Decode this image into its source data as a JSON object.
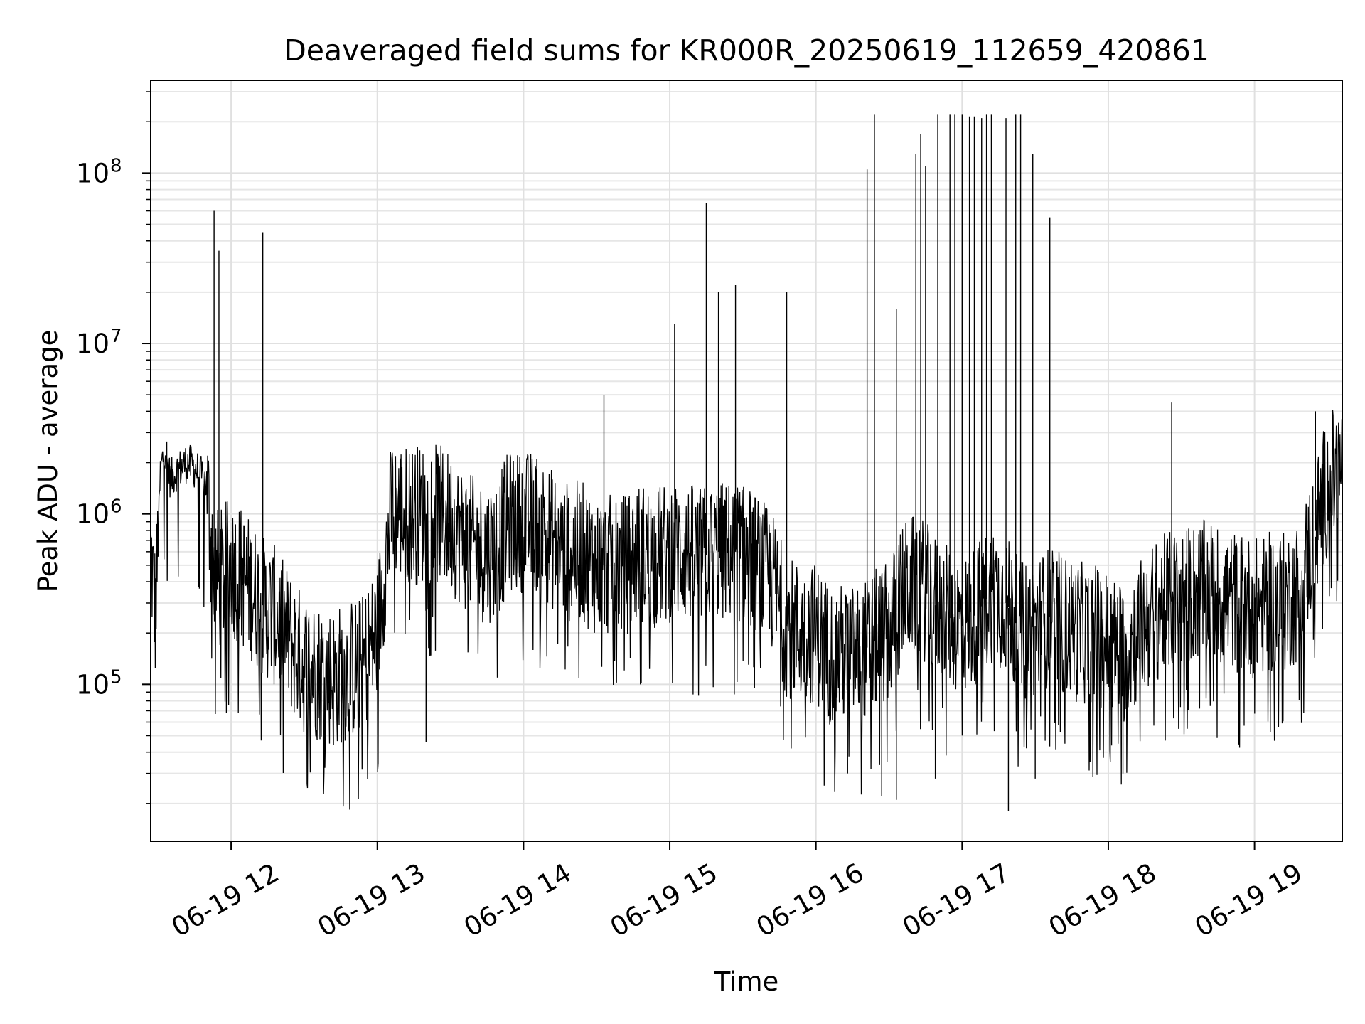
{
  "chart_data": {
    "type": "line",
    "title": "Deaveraged field sums for KR000R_20250619_112659_420861",
    "xlabel": "Time",
    "ylabel": "Peak ADU - average",
    "yscale": "log",
    "grid": true,
    "legend": "none",
    "xlim": [
      "2025-06-19 11:27",
      "2025-06-19 19:36"
    ],
    "ylim": [
      12000,
      350000000
    ],
    "xticks": [
      {
        "time": "2025-06-19 12:00",
        "label": "06-19 12"
      },
      {
        "time": "2025-06-19 13:00",
        "label": "06-19 13"
      },
      {
        "time": "2025-06-19 14:00",
        "label": "06-19 14"
      },
      {
        "time": "2025-06-19 15:00",
        "label": "06-19 15"
      },
      {
        "time": "2025-06-19 16:00",
        "label": "06-19 16"
      },
      {
        "time": "2025-06-19 17:00",
        "label": "06-19 17"
      },
      {
        "time": "2025-06-19 18:00",
        "label": "06-19 18"
      },
      {
        "time": "2025-06-19 19:00",
        "label": "06-19 19"
      }
    ],
    "yticks": [
      {
        "value": 100000,
        "label": "10",
        "exp": "5"
      },
      {
        "value": 1000000,
        "label": "10",
        "exp": "6"
      },
      {
        "value": 10000000,
        "label": "10",
        "exp": "7"
      },
      {
        "value": 100000000,
        "label": "10",
        "exp": "8"
      }
    ],
    "line_color": "#000000",
    "series": [
      {
        "x": [
          "2025-06-19 11:27",
          "2025-06-19 11:29",
          "2025-06-19 11:31",
          "2025-06-19 11:33",
          "2025-06-19 11:35",
          "2025-06-19 11:38",
          "2025-06-19 11:42",
          "2025-06-19 11:46",
          "2025-06-19 11:50",
          "2025-06-19 11:52",
          "2025-06-19 11:53",
          "2025-06-19 11:55",
          "2025-06-19 12:00",
          "2025-06-19 12:06",
          "2025-06-19 12:12",
          "2025-06-19 12:18",
          "2025-06-19 12:24",
          "2025-06-19 12:30",
          "2025-06-19 12:36",
          "2025-06-19 12:42",
          "2025-06-19 12:48",
          "2025-06-19 12:54",
          "2025-06-19 13:00",
          "2025-06-19 13:06",
          "2025-06-19 13:12",
          "2025-06-19 13:18",
          "2025-06-19 13:24",
          "2025-06-19 13:30",
          "2025-06-19 13:36",
          "2025-06-19 13:42",
          "2025-06-19 13:48",
          "2025-06-19 13:54",
          "2025-06-19 14:00",
          "2025-06-19 14:06",
          "2025-06-19 14:12",
          "2025-06-19 14:18",
          "2025-06-19 14:24",
          "2025-06-19 14:30",
          "2025-06-19 14:36",
          "2025-06-19 14:42",
          "2025-06-19 14:48",
          "2025-06-19 14:54",
          "2025-06-19 15:00",
          "2025-06-19 15:06",
          "2025-06-19 15:12",
          "2025-06-19 15:18",
          "2025-06-19 15:24",
          "2025-06-19 15:30",
          "2025-06-19 15:36",
          "2025-06-19 15:42",
          "2025-06-19 15:48",
          "2025-06-19 15:54",
          "2025-06-19 16:00",
          "2025-06-19 16:06",
          "2025-06-19 16:12",
          "2025-06-19 16:18",
          "2025-06-19 16:24",
          "2025-06-19 16:30",
          "2025-06-19 16:36",
          "2025-06-19 16:42",
          "2025-06-19 16:48",
          "2025-06-19 16:54",
          "2025-06-19 17:00",
          "2025-06-19 17:06",
          "2025-06-19 17:12",
          "2025-06-19 17:18",
          "2025-06-19 17:24",
          "2025-06-19 17:30",
          "2025-06-19 17:36",
          "2025-06-19 17:42",
          "2025-06-19 17:48",
          "2025-06-19 17:54",
          "2025-06-19 18:00",
          "2025-06-19 18:06",
          "2025-06-19 18:12",
          "2025-06-19 18:18",
          "2025-06-19 18:24",
          "2025-06-19 18:30",
          "2025-06-19 18:36",
          "2025-06-19 18:42",
          "2025-06-19 18:48",
          "2025-06-19 18:54",
          "2025-06-19 19:00",
          "2025-06-19 19:06",
          "2025-06-19 19:12",
          "2025-06-19 19:18",
          "2025-06-19 19:24",
          "2025-06-19 19:30",
          "2025-06-19 19:36"
        ],
        "y": [
          600000,
          250000,
          1800000,
          2500000,
          1600000,
          1800000,
          2000000,
          1800000,
          1500000,
          600000,
          500000,
          400000,
          500000,
          400000,
          300000,
          250000,
          180000,
          130000,
          120000,
          110000,
          120000,
          130000,
          200000,
          1100000,
          1000000,
          1000000,
          1000000,
          900000,
          700000,
          600000,
          600000,
          900000,
          900000,
          900000,
          700000,
          600000,
          600000,
          500000,
          500000,
          500000,
          600000,
          550000,
          600000,
          600000,
          550000,
          600000,
          600000,
          600000,
          500000,
          400000,
          220000,
          200000,
          200000,
          150000,
          150000,
          150000,
          180000,
          200000,
          350000,
          400000,
          300000,
          250000,
          220000,
          260000,
          350000,
          300000,
          200000,
          220000,
          250000,
          220000,
          200000,
          200000,
          180000,
          150000,
          200000,
          260000,
          300000,
          320000,
          350000,
          350000,
          320000,
          300000,
          280000,
          300000,
          300000,
          350000,
          700000,
          1500000,
          1800000
        ]
      }
    ],
    "spikes": [
      {
        "x": "2025-06-19 11:53",
        "y": 60000000
      },
      {
        "x": "2025-06-19 11:55",
        "y": 35000000
      },
      {
        "x": "2025-06-19 14:33",
        "y": 5000000
      },
      {
        "x": "2025-06-19 15:02",
        "y": 13000000
      },
      {
        "x": "2025-06-19 15:15",
        "y": 67000000
      },
      {
        "x": "2025-06-19 15:20",
        "y": 20000000
      },
      {
        "x": "2025-06-19 15:27",
        "y": 22000000
      },
      {
        "x": "2025-06-19 15:48",
        "y": 20000000
      },
      {
        "x": "2025-06-19 16:21",
        "y": 105000000
      },
      {
        "x": "2025-06-19 16:24",
        "y": 220000000
      },
      {
        "x": "2025-06-19 16:33",
        "y": 16000000
      },
      {
        "x": "2025-06-19 16:41",
        "y": 130000000
      },
      {
        "x": "2025-06-19 16:43",
        "y": 170000000
      },
      {
        "x": "2025-06-19 16:45",
        "y": 110000000
      },
      {
        "x": "2025-06-19 16:50",
        "y": 220000000
      },
      {
        "x": "2025-06-19 16:55",
        "y": 220000000
      },
      {
        "x": "2025-06-19 16:57",
        "y": 220000000
      },
      {
        "x": "2025-06-19 17:00",
        "y": 220000000
      },
      {
        "x": "2025-06-19 17:03",
        "y": 215000000
      },
      {
        "x": "2025-06-19 17:05",
        "y": 215000000
      },
      {
        "x": "2025-06-19 17:08",
        "y": 210000000
      },
      {
        "x": "2025-06-19 17:10",
        "y": 220000000
      },
      {
        "x": "2025-06-19 17:12",
        "y": 220000000
      },
      {
        "x": "2025-06-19 17:18",
        "y": 210000000
      },
      {
        "x": "2025-06-19 17:22",
        "y": 220000000
      },
      {
        "x": "2025-06-19 17:24",
        "y": 220000000
      },
      {
        "x": "2025-06-19 17:29",
        "y": 130000000
      },
      {
        "x": "2025-06-19 17:36",
        "y": 55000000
      },
      {
        "x": "2025-06-19 18:26",
        "y": 4500000
      },
      {
        "x": "2025-06-19 19:25",
        "y": 4000000
      }
    ],
    "dips": [
      {
        "x": "2025-06-19 12:13",
        "y": 45000000
      },
      {
        "x": "2025-06-19 12:42",
        "y": 44000
      },
      {
        "x": "2025-06-19 13:20",
        "y": 46000
      },
      {
        "x": "2025-06-19 16:13",
        "y": 30000
      },
      {
        "x": "2025-06-19 16:27",
        "y": 22000
      },
      {
        "x": "2025-06-19 16:33",
        "y": 21000
      },
      {
        "x": "2025-06-19 16:49",
        "y": 28000
      },
      {
        "x": "2025-06-19 17:19",
        "y": 18000
      },
      {
        "x": "2025-06-19 17:30",
        "y": 28000
      },
      {
        "x": "2025-06-19 18:06",
        "y": 30000
      }
    ]
  }
}
